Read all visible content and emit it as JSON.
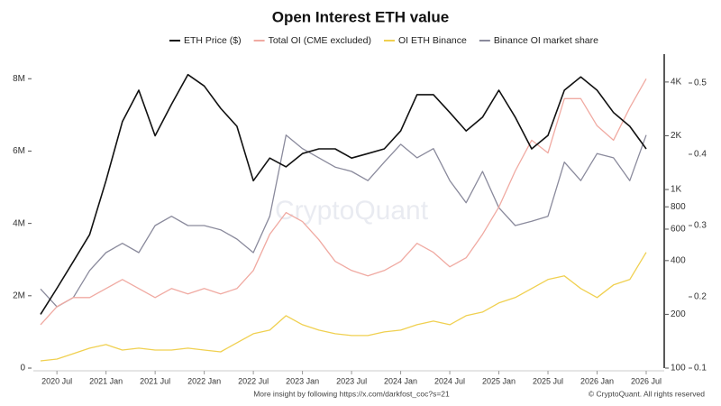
{
  "chart_data": {
    "type": "line",
    "title": "Open Interest ETH value",
    "watermark": "CryptoQuant",
    "footer": "More insight by following https://x.com/darkfost_coc?s=21",
    "copyright": "© CryptoQuant. All rights reserved",
    "x": [
      "2020 May",
      "2020 Jul",
      "2020 Sep",
      "2020 Nov",
      "2021 Jan",
      "2021 Mar",
      "2021 May",
      "2021 Jul",
      "2021 Sep",
      "2021 Nov",
      "2022 Jan",
      "2022 Mar",
      "2022 May",
      "2022 Jul",
      "2022 Sep",
      "2022 Nov",
      "2023 Jan",
      "2023 Mar",
      "2023 May",
      "2023 Jul",
      "2023 Sep",
      "2023 Nov",
      "2024 Jan",
      "2024 Mar",
      "2024 May",
      "2024 Jul",
      "2024 Sep",
      "2024 Nov",
      "2025 Jan",
      "2025 Mar",
      "2025 May",
      "2025 Jul",
      "2025 Sep",
      "2025 Nov",
      "2026 Jan",
      "2026 Mar",
      "2026 May",
      "2026 Jul"
    ],
    "xticks": [
      "2020 Jul",
      "2021 Jan",
      "2021 Jul",
      "2022 Jan",
      "2022 Jul",
      "2023 Jan",
      "2023 Jul",
      "2024 Jan",
      "2024 Jul",
      "2025 Jan",
      "2025 Jul",
      "2026 Jan",
      "2026 Jul"
    ],
    "ylim": [
      0,
      8680000
    ],
    "yticks": [
      0,
      {
        "value": 2000000,
        "label": "2M"
      },
      {
        "value": 4000000,
        "label": "4M"
      },
      {
        "value": 6000000,
        "label": "6M"
      },
      {
        "value": 8000000,
        "label": "8M"
      }
    ],
    "y2lim": [
      0.1,
      0.5405
    ],
    "y2ticks": [
      0.1,
      0.2,
      0.3,
      0.4,
      0.5
    ],
    "y3lim": [
      100,
      5730
    ],
    "y3log": true,
    "y3ticks": [
      100,
      200,
      400,
      600,
      800,
      {
        "value": 1000,
        "label": "1K"
      },
      {
        "value": 2000,
        "label": "2K"
      },
      {
        "value": 4000,
        "label": "4K"
      }
    ],
    "series": [
      {
        "name": "ETH Price ($)",
        "color": "#111111",
        "axis": "y3",
        "values": [
          200,
          280,
          395,
          560,
          1120,
          2400,
          3600,
          2000,
          3000,
          4400,
          3800,
          2850,
          2260,
          1120,
          1500,
          1340,
          1590,
          1690,
          1690,
          1500,
          1590,
          1690,
          2130,
          3400,
          3400,
          2700,
          2130,
          2540,
          3600,
          2540,
          1690,
          2010,
          3600,
          4270,
          3600,
          2700,
          2260,
          1690
        ]
      },
      {
        "name": "Total OI (CME excluded)",
        "color": "#f0aaa2",
        "values": [
          1200000,
          1700000,
          1950000,
          1950000,
          2200000,
          2450000,
          2200000,
          1950000,
          2200000,
          2050000,
          2200000,
          2050000,
          2200000,
          2700000,
          3700000,
          4300000,
          4050000,
          3550000,
          2950000,
          2700000,
          2550000,
          2700000,
          2950000,
          3450000,
          3200000,
          2800000,
          3050000,
          3700000,
          4450000,
          5450000,
          6300000,
          5950000,
          7450000,
          7450000,
          6700000,
          6300000,
          7200000,
          8000000
        ]
      },
      {
        "name": "OI ETH Binance",
        "color": "#f0d050",
        "values": [
          200000,
          250000,
          400000,
          550000,
          650000,
          500000,
          550000,
          500000,
          500000,
          550000,
          500000,
          450000,
          700000,
          950000,
          1050000,
          1450000,
          1200000,
          1050000,
          950000,
          900000,
          900000,
          1000000,
          1050000,
          1200000,
          1300000,
          1200000,
          1450000,
          1550000,
          1800000,
          1950000,
          2200000,
          2450000,
          2550000,
          2200000,
          1950000,
          2300000,
          2450000,
          3200000
        ]
      },
      {
        "name": "Binance OI market share",
        "color": "#8a8a9c",
        "axis": "y2",
        "values": [
          0.211,
          0.186,
          0.199,
          0.237,
          0.262,
          0.275,
          0.262,
          0.3,
          0.313,
          0.3,
          0.3,
          0.294,
          0.281,
          0.262,
          0.313,
          0.427,
          0.408,
          0.395,
          0.382,
          0.376,
          0.363,
          0.389,
          0.414,
          0.395,
          0.408,
          0.363,
          0.332,
          0.376,
          0.325,
          0.3,
          0.306,
          0.313,
          0.389,
          0.363,
          0.401,
          0.395,
          0.363,
          0.427
        ]
      }
    ]
  }
}
